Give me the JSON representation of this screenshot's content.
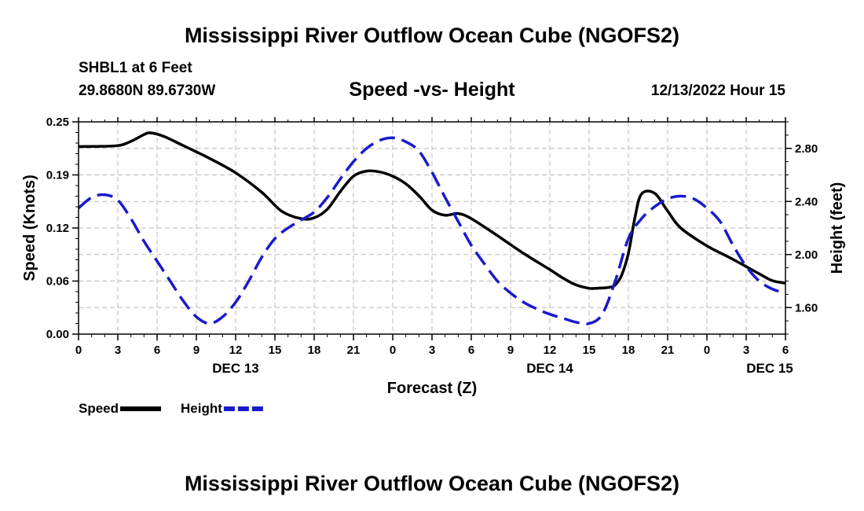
{
  "header": {
    "title": "Mississippi River Outflow Ocean Cube (NGOFS2)",
    "station": "SHBL1 at 6 Feet",
    "coords": "29.8680N  89.6730W",
    "subtitle": "Speed -vs- Height",
    "datetime": "12/13/2022 Hour 15"
  },
  "footer": {
    "title": "Mississippi River Outflow Ocean Cube (NGOFS2)"
  },
  "chart_data": {
    "type": "line",
    "title": "Speed -vs- Height",
    "xlabel": "Forecast (Z)",
    "ylabel": "Speed (Knots)",
    "y2label": "Height (feet)",
    "x_unit": "forecast hours since 12/13/2022 00Z",
    "xlim": [
      0,
      54
    ],
    "ylim": [
      0,
      0.25
    ],
    "y2lim": [
      1.4,
      3.0
    ],
    "grid": true,
    "x_ticks": [
      {
        "x": 0,
        "label": "0"
      },
      {
        "x": 3,
        "label": "3"
      },
      {
        "x": 6,
        "label": "6"
      },
      {
        "x": 9,
        "label": "9"
      },
      {
        "x": 12,
        "label": "12"
      },
      {
        "x": 15,
        "label": "15"
      },
      {
        "x": 18,
        "label": "18"
      },
      {
        "x": 21,
        "label": "21"
      },
      {
        "x": 24,
        "label": "0"
      },
      {
        "x": 27,
        "label": "3"
      },
      {
        "x": 30,
        "label": "6"
      },
      {
        "x": 33,
        "label": "9"
      },
      {
        "x": 36,
        "label": "12"
      },
      {
        "x": 39,
        "label": "15"
      },
      {
        "x": 42,
        "label": "18"
      },
      {
        "x": 45,
        "label": "21"
      },
      {
        "x": 48,
        "label": "0"
      },
      {
        "x": 51,
        "label": "3"
      },
      {
        "x": 54,
        "label": "6"
      }
    ],
    "date_labels": [
      {
        "x": 12,
        "label": "DEC 13"
      },
      {
        "x": 36,
        "label": "DEC 14"
      },
      {
        "x": 52.8,
        "label": "DEC 15"
      }
    ],
    "y_ticks": [
      {
        "v": 0.0,
        "label": "0.00"
      },
      {
        "v": 0.0625,
        "label": "0.06"
      },
      {
        "v": 0.125,
        "label": "0.12"
      },
      {
        "v": 0.1875,
        "label": "0.19"
      },
      {
        "v": 0.25,
        "label": "0.25"
      }
    ],
    "y2_ticks": [
      {
        "v": 1.6,
        "label": "1.60"
      },
      {
        "v": 2.0,
        "label": "2.00"
      },
      {
        "v": 2.4,
        "label": "2.40"
      },
      {
        "v": 2.8,
        "label": "2.80"
      }
    ],
    "series": [
      {
        "name": "Speed",
        "axis": "left",
        "color": "#000000",
        "dash": false,
        "x": [
          0,
          1,
          3,
          4,
          5,
          5.5,
          6.5,
          8,
          10,
          12,
          14,
          15.5,
          17,
          18,
          19,
          20,
          21,
          22,
          23,
          24,
          25,
          26,
          27,
          28,
          29,
          30,
          32,
          34,
          36,
          37,
          38,
          39,
          39.5,
          40.5,
          41,
          41.5,
          42,
          42.5,
          43,
          44,
          45,
          46,
          48,
          50,
          52,
          53,
          54
        ],
        "values": [
          0.221,
          0.221,
          0.222,
          0.227,
          0.235,
          0.237,
          0.233,
          0.222,
          0.207,
          0.19,
          0.167,
          0.145,
          0.136,
          0.137,
          0.147,
          0.168,
          0.186,
          0.192,
          0.191,
          0.186,
          0.177,
          0.163,
          0.146,
          0.14,
          0.142,
          0.136,
          0.116,
          0.095,
          0.076,
          0.066,
          0.058,
          0.054,
          0.054,
          0.055,
          0.058,
          0.07,
          0.095,
          0.137,
          0.165,
          0.166,
          0.145,
          0.125,
          0.104,
          0.088,
          0.071,
          0.063,
          0.06
        ]
      },
      {
        "name": "Height",
        "axis": "right",
        "color": "#1a1acd",
        "dash": true,
        "x": [
          0,
          1,
          2,
          3,
          4,
          5,
          6,
          7,
          8,
          9,
          10,
          11,
          12,
          13,
          14,
          15,
          16,
          17,
          18,
          19,
          20,
          21,
          22,
          23,
          24,
          25,
          26,
          27,
          28,
          29,
          30,
          31,
          32,
          33,
          34,
          35,
          36,
          37,
          38,
          39,
          40,
          41,
          42,
          43,
          44,
          45,
          46,
          47,
          48,
          49,
          50,
          51,
          52,
          53,
          54
        ],
        "values": [
          2.35,
          2.43,
          2.45,
          2.41,
          2.27,
          2.1,
          1.95,
          1.8,
          1.65,
          1.53,
          1.48,
          1.53,
          1.64,
          1.8,
          1.98,
          2.12,
          2.2,
          2.26,
          2.32,
          2.43,
          2.57,
          2.7,
          2.8,
          2.86,
          2.88,
          2.85,
          2.78,
          2.62,
          2.43,
          2.25,
          2.07,
          1.93,
          1.8,
          1.71,
          1.64,
          1.59,
          1.55,
          1.52,
          1.49,
          1.48,
          1.55,
          1.8,
          2.12,
          2.27,
          2.36,
          2.42,
          2.44,
          2.42,
          2.35,
          2.25,
          2.07,
          1.91,
          1.8,
          1.74,
          1.71
        ]
      }
    ],
    "legend": {
      "position": "bottom-left",
      "items": [
        {
          "label": "Speed",
          "color": "#000000",
          "dash": false
        },
        {
          "label": "Height",
          "color": "#1a1acd",
          "dash": true
        }
      ]
    }
  }
}
